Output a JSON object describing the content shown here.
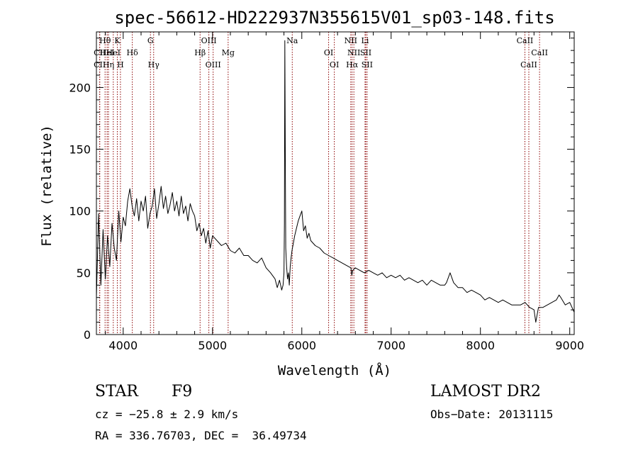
{
  "chart_data": {
    "type": "line",
    "title": "spec-56612-HD222937N355615V01_sp03-148.fits",
    "xlabel": "Wavelength (Å)",
    "ylabel": "Flux (relative)",
    "xlim": [
      3700,
      9050
    ],
    "ylim": [
      0,
      245
    ],
    "x_ticks": [
      4000,
      5000,
      6000,
      7000,
      8000,
      9000
    ],
    "y_ticks": [
      0,
      50,
      100,
      150,
      200
    ],
    "grid": false,
    "line_color": "#000000",
    "marker_color": "#8b0000",
    "series": [
      {
        "x": [
          3700,
          3725,
          3750,
          3775,
          3800,
          3825,
          3850,
          3875,
          3900,
          3925,
          3950,
          3975,
          4000,
          4025,
          4050,
          4075,
          4100,
          4125,
          4150,
          4175,
          4200,
          4225,
          4250,
          4275,
          4300,
          4325,
          4350,
          4375,
          4400,
          4425,
          4450,
          4475,
          4500,
          4525,
          4550,
          4575,
          4600,
          4625,
          4650,
          4675,
          4700,
          4725,
          4750,
          4775,
          4800,
          4825,
          4850,
          4875,
          4900,
          4925,
          4950,
          4975,
          5000,
          5050,
          5100,
          5150,
          5200,
          5250,
          5300,
          5350,
          5400,
          5450,
          5500,
          5550,
          5600,
          5650,
          5700,
          5725,
          5750,
          5775,
          5790,
          5800,
          5805,
          5810,
          5815,
          5820,
          5830,
          5840,
          5850,
          5860,
          5870,
          5880,
          5890,
          5900,
          5920,
          5940,
          5960,
          5980,
          6000,
          6020,
          6040,
          6060,
          6080,
          6100,
          6150,
          6200,
          6250,
          6300,
          6350,
          6400,
          6450,
          6500,
          6550,
          6560,
          6570,
          6600,
          6650,
          6700,
          6750,
          6800,
          6850,
          6900,
          6950,
          7000,
          7050,
          7100,
          7150,
          7200,
          7250,
          7300,
          7350,
          7400,
          7450,
          7500,
          7550,
          7600,
          7620,
          7640,
          7660,
          7700,
          7750,
          7800,
          7850,
          7900,
          7950,
          8000,
          8050,
          8100,
          8150,
          8200,
          8250,
          8300,
          8350,
          8400,
          8450,
          8500,
          8550,
          8600,
          8620,
          8650,
          8700,
          8750,
          8800,
          8850,
          8880,
          8900,
          8950,
          9000,
          9050
        ],
        "y": [
          30,
          98,
          40,
          85,
          45,
          80,
          55,
          90,
          70,
          60,
          100,
          75,
          95,
          88,
          108,
          118,
          104,
          96,
          110,
          92,
          108,
          100,
          112,
          86,
          98,
          104,
          118,
          94,
          106,
          120,
          102,
          112,
          98,
          105,
          115,
          100,
          108,
          96,
          112,
          98,
          104,
          92,
          106,
          100,
          96,
          84,
          90,
          80,
          86,
          74,
          84,
          70,
          80,
          76,
          72,
          74,
          68,
          66,
          70,
          64,
          64,
          60,
          58,
          62,
          54,
          50,
          45,
          38,
          44,
          36,
          40,
          50,
          90,
          238,
          140,
          70,
          55,
          45,
          50,
          40,
          55,
          62,
          68,
          72,
          80,
          86,
          92,
          96,
          100,
          84,
          88,
          78,
          82,
          76,
          72,
          70,
          66,
          64,
          62,
          60,
          58,
          56,
          54,
          48,
          52,
          54,
          52,
          50,
          52,
          50,
          48,
          50,
          46,
          48,
          46,
          48,
          44,
          46,
          44,
          42,
          44,
          40,
          44,
          42,
          40,
          40,
          42,
          46,
          50,
          42,
          38,
          38,
          34,
          36,
          34,
          32,
          28,
          30,
          28,
          26,
          28,
          26,
          24,
          24,
          24,
          26,
          22,
          20,
          10,
          22,
          22,
          24,
          26,
          28,
          32,
          30,
          24,
          26,
          18
        ]
      }
    ],
    "line_markers": [
      {
        "label": "Hθ",
        "x": 3797,
        "row": 1
      },
      {
        "label": "CII",
        "x": 3737,
        "row": 2
      },
      {
        "label": "CII",
        "x": 3737,
        "row": 3
      },
      {
        "label": "HeI",
        "x": 3820,
        "row": 2
      },
      {
        "label": "Hη",
        "x": 3835,
        "row": 3
      },
      {
        "label": "K",
        "x": 3934,
        "row": 1
      },
      {
        "label": "HeI",
        "x": 3889,
        "row": 2
      },
      {
        "label": "H",
        "x": 3969,
        "row": 3
      },
      {
        "label": "Hδ",
        "x": 4102,
        "row": 2
      },
      {
        "label": "G",
        "x": 4305,
        "row": 1
      },
      {
        "label": "Hγ",
        "x": 4341,
        "row": 3
      },
      {
        "label": "OIII",
        "x": 4959,
        "row": 1
      },
      {
        "label": "Hβ",
        "x": 4861,
        "row": 2
      },
      {
        "label": "OIII",
        "x": 5007,
        "row": 3
      },
      {
        "label": "Mg",
        "x": 5175,
        "row": 2
      },
      {
        "label": "Na",
        "x": 5893,
        "row": 1
      },
      {
        "label": "OI",
        "x": 6300,
        "row": 2
      },
      {
        "label": "OI",
        "x": 6364,
        "row": 3
      },
      {
        "label": "NII",
        "x": 6548,
        "row": 1
      },
      {
        "label": "NII",
        "x": 6583,
        "row": 2
      },
      {
        "label": "Hα",
        "x": 6563,
        "row": 3
      },
      {
        "label": "Li",
        "x": 6708,
        "row": 1
      },
      {
        "label": "SII",
        "x": 6716,
        "row": 2
      },
      {
        "label": "SII",
        "x": 6731,
        "row": 3
      },
      {
        "label": "CaII",
        "x": 8498,
        "row": 1
      },
      {
        "label": "CaII",
        "x": 8662,
        "row": 2
      },
      {
        "label": "CaII",
        "x": 8542,
        "row": 3
      }
    ]
  },
  "info": {
    "object_type": "STAR",
    "subclass": "F9",
    "survey": "LAMOST DR2",
    "cz": "cz = −25.8 ± 2.9 km/s",
    "obs_date": "Obs−Date: 20131115",
    "coords": "RA = 336.76703, DEC =  36.49734"
  }
}
